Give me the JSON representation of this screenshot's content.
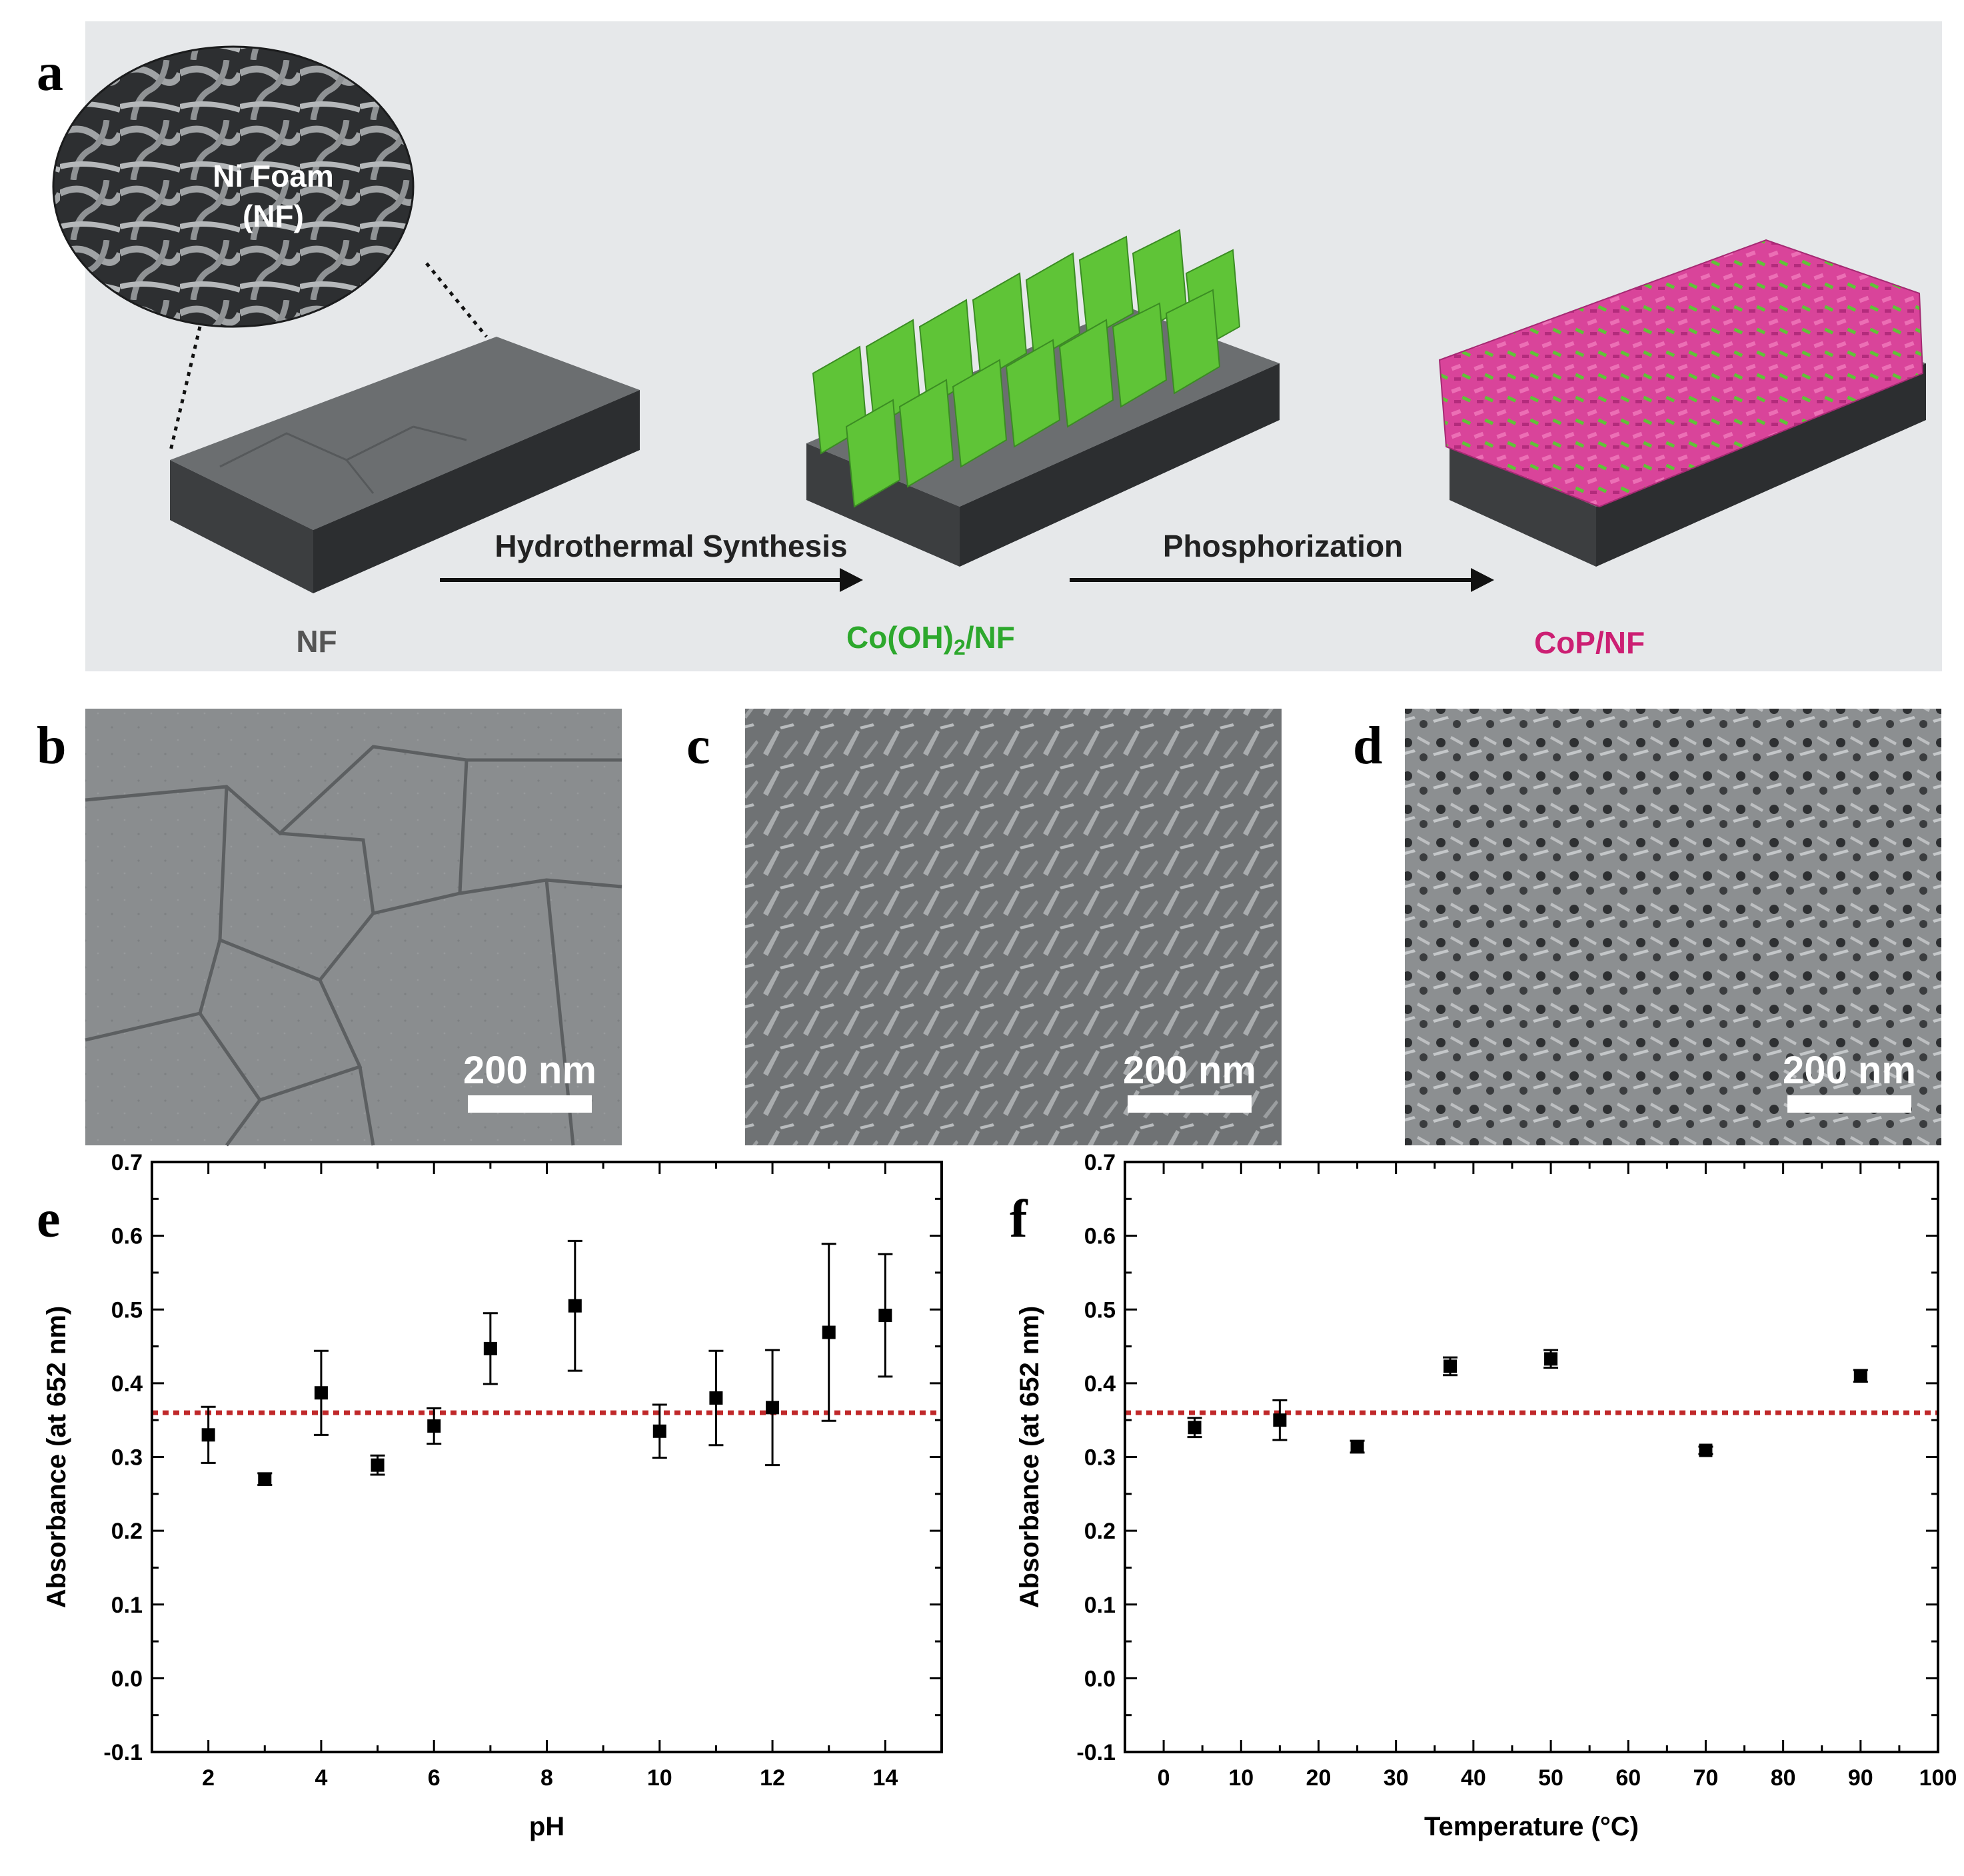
{
  "panel_letters": [
    "a",
    "b",
    "c",
    "d",
    "e",
    "f"
  ],
  "scheme": {
    "inset_label_line1": "Ni Foam",
    "inset_label_line2": "(NF)",
    "arrow1_label": "Hydrothermal Synthesis",
    "arrow2_label": "Phosphorization",
    "stage1_label": "NF",
    "stage2_label_main": "Co(OH)",
    "stage2_label_sub": "2",
    "stage2_label_tail": "/NF",
    "stage3_label": "CoP/NF",
    "colors": {
      "background": "#e6e8ea",
      "nf": "#5a5d5f",
      "cooh": "#5fc437",
      "cop": "#d9449a",
      "stage3_text": "#cc1f73",
      "stage2_text": "#2da82d",
      "stage1_text": "#555555"
    }
  },
  "sem": {
    "scalebar_label": "200 nm"
  },
  "chart_data": [
    {
      "type": "scatter",
      "panel": "e",
      "xlabel": "pH",
      "ylabel": "Absorbance (at 652 nm)",
      "xlim": [
        1,
        15
      ],
      "ylim": [
        -0.1,
        0.7
      ],
      "xticks": [
        2,
        4,
        6,
        8,
        10,
        12,
        14
      ],
      "yticks": [
        -0.1,
        0.0,
        0.1,
        0.2,
        0.3,
        0.4,
        0.5,
        0.6,
        0.7
      ],
      "reference_line": 0.36,
      "reference_color": "#c0282a",
      "points": [
        {
          "x": 2,
          "y": 0.33,
          "err": 0.038
        },
        {
          "x": 3,
          "y": 0.27,
          "err": 0.008
        },
        {
          "x": 4,
          "y": 0.387,
          "err": 0.057
        },
        {
          "x": 5,
          "y": 0.289,
          "err": 0.013
        },
        {
          "x": 6,
          "y": 0.342,
          "err": 0.024
        },
        {
          "x": 7,
          "y": 0.447,
          "err": 0.048
        },
        {
          "x": 8.5,
          "y": 0.505,
          "err": 0.088
        },
        {
          "x": 10,
          "y": 0.335,
          "err": 0.036
        },
        {
          "x": 11,
          "y": 0.38,
          "err": 0.064
        },
        {
          "x": 12,
          "y": 0.367,
          "err": 0.078
        },
        {
          "x": 13,
          "y": 0.469,
          "err": 0.12
        },
        {
          "x": 14,
          "y": 0.492,
          "err": 0.083
        }
      ]
    },
    {
      "type": "scatter",
      "panel": "f",
      "xlabel": "Temperature (°C)",
      "ylabel": "Absorbance (at 652 nm)",
      "xlim": [
        -5,
        100
      ],
      "ylim": [
        -0.1,
        0.7
      ],
      "xticks": [
        0,
        10,
        20,
        30,
        40,
        50,
        60,
        70,
        80,
        90,
        100
      ],
      "yticks": [
        -0.1,
        0.0,
        0.1,
        0.2,
        0.3,
        0.4,
        0.5,
        0.6,
        0.7
      ],
      "reference_line": 0.36,
      "reference_color": "#c0282a",
      "points": [
        {
          "x": 4,
          "y": 0.34,
          "err": 0.013
        },
        {
          "x": 15,
          "y": 0.35,
          "err": 0.027
        },
        {
          "x": 25,
          "y": 0.314,
          "err": 0.008
        },
        {
          "x": 37,
          "y": 0.423,
          "err": 0.012
        },
        {
          "x": 50,
          "y": 0.433,
          "err": 0.012
        },
        {
          "x": 70,
          "y": 0.309,
          "err": 0.005
        },
        {
          "x": 90,
          "y": 0.41,
          "err": 0.008
        }
      ]
    }
  ]
}
